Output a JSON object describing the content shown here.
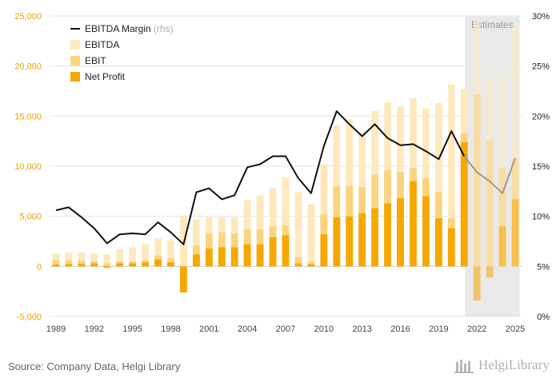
{
  "chart_data": {
    "type": "bar",
    "stacking": "overlay",
    "categories": [
      "1989",
      "1990",
      "1991",
      "1992",
      "1993",
      "1994",
      "1995",
      "1996",
      "1997",
      "1998",
      "1999",
      "2000",
      "2001",
      "2002",
      "2003",
      "2004",
      "2005",
      "2006",
      "2007",
      "2008",
      "2009",
      "2010",
      "2011",
      "2012",
      "2013",
      "2014",
      "2015",
      "2016",
      "2017",
      "2018",
      "2019",
      "2020",
      "2021",
      "2022",
      "2023",
      "2024",
      "2025"
    ],
    "x_tick_labels": [
      "1989",
      "1992",
      "1995",
      "1998",
      "2001",
      "2004",
      "2007",
      "2010",
      "2013",
      "2016",
      "2019",
      "2022",
      "2025"
    ],
    "series": [
      {
        "name": "EBITDA",
        "axis": "left",
        "color": "#fde9bd",
        "values": [
          1300,
          1400,
          1400,
          1300,
          1200,
          1700,
          1900,
          2200,
          2800,
          2600,
          5000,
          4700,
          4900,
          4900,
          4900,
          6600,
          7100,
          7800,
          8900,
          7400,
          6200,
          10200,
          14100,
          14700,
          13200,
          15500,
          16400,
          16000,
          16800,
          15800,
          16300,
          18200,
          17700,
          24500,
          18900,
          19000,
          24000
        ]
      },
      {
        "name": "EBIT",
        "axis": "left",
        "color": "#fcd37e",
        "values": [
          650,
          600,
          600,
          500,
          300,
          500,
          500,
          600,
          1100,
          800,
          -400,
          2100,
          3300,
          3400,
          3300,
          3700,
          3700,
          4000,
          4100,
          900,
          500,
          5200,
          8000,
          8000,
          7900,
          9100,
          9600,
          9400,
          9800,
          8800,
          7400,
          4800,
          13300,
          17200,
          12600,
          9800,
          10800
        ]
      },
      {
        "name": "Net Profit",
        "axis": "left",
        "color": "#f6a800",
        "values": [
          200,
          250,
          250,
          300,
          -150,
          300,
          300,
          400,
          700,
          400,
          -2600,
          1200,
          1800,
          1900,
          1900,
          2200,
          2200,
          2900,
          3100,
          300,
          200,
          3200,
          4900,
          5000,
          5300,
          5800,
          6300,
          6800,
          8500,
          7000,
          4800,
          3800,
          12400,
          -3400,
          -1100,
          4000,
          6700
        ]
      },
      {
        "name": "EBITDA Margin",
        "note": "(rhs)",
        "axis": "right",
        "type": "line",
        "color": "#111111",
        "values": [
          10.6,
          10.9,
          9.9,
          8.8,
          7.3,
          8.2,
          8.3,
          8.2,
          9.4,
          8.4,
          7.2,
          12.4,
          12.8,
          11.7,
          12.1,
          14.9,
          15.2,
          16.0,
          16.0,
          13.8,
          12.3,
          17.0,
          20.5,
          19.2,
          18.0,
          19.2,
          17.8,
          17.1,
          17.2,
          16.5,
          15.7,
          18.5,
          16.0,
          14.4,
          13.5,
          12.3,
          15.8
        ]
      }
    ],
    "estimates": {
      "label": "Estimates",
      "from": "2022",
      "to": "2025"
    },
    "y_left": {
      "min": -5000,
      "max": 25000,
      "ticks": [
        "-5,000",
        "0",
        "5,000",
        "10,000",
        "15,000",
        "20,000",
        "25,000"
      ],
      "color": "#e6a100"
    },
    "y_right": {
      "min": 0,
      "max": 30,
      "ticks": [
        "0%",
        "5%",
        "10%",
        "15%",
        "20%",
        "25%",
        "30%"
      ]
    },
    "grid": true,
    "legend_position": "top-left"
  },
  "footer": {
    "source": "Source: Company Data, Helgi Library",
    "brand": "HelgiLibrary"
  }
}
